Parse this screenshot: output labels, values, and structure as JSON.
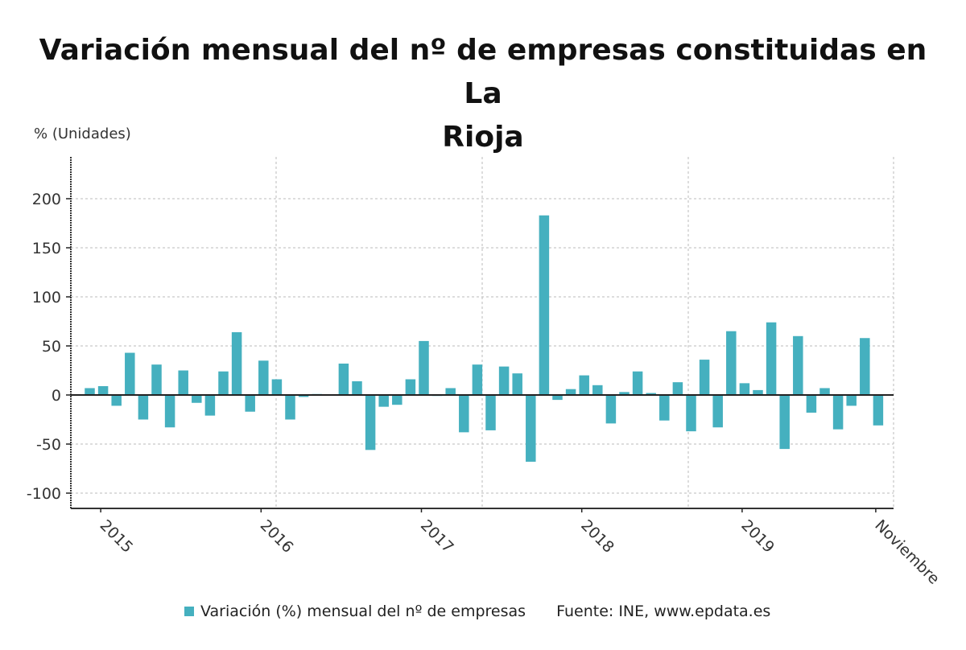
{
  "chart_data": {
    "type": "bar",
    "title": "Variación mensual del nº de empresas constituidas en La Rioja",
    "ylabel": "% (Unidades)",
    "xlabel": "",
    "ylim": [
      -115,
      240
    ],
    "yticks": [
      200,
      150,
      100,
      50,
      0,
      -50,
      -100
    ],
    "ytick_labels": [
      "200",
      "150",
      "100",
      "50",
      "0",
      "-50",
      "-100"
    ],
    "grid": true,
    "xtick_labels": [
      {
        "label": "2015",
        "index": 1
      },
      {
        "label": "2016",
        "index": 13
      },
      {
        "label": "2017",
        "index": 25
      },
      {
        "label": "2018",
        "index": 37
      },
      {
        "label": "2019",
        "index": 49
      },
      {
        "label": "Noviembre",
        "index": 59
      }
    ],
    "categories": [
      "2014-12",
      "2015-01",
      "2015-02",
      "2015-03",
      "2015-04",
      "2015-05",
      "2015-06",
      "2015-07",
      "2015-08",
      "2015-09",
      "2015-10",
      "2015-11",
      "2015-12",
      "2016-01",
      "2016-02",
      "2016-03",
      "2016-04",
      "2016-05",
      "2016-06",
      "2016-07",
      "2016-08",
      "2016-09",
      "2016-10",
      "2016-11",
      "2016-12",
      "2017-01",
      "2017-02",
      "2017-03",
      "2017-04",
      "2017-05",
      "2017-06",
      "2017-07",
      "2017-08",
      "2017-09",
      "2017-10",
      "2017-11",
      "2017-12",
      "2018-01",
      "2018-02",
      "2018-03",
      "2018-04",
      "2018-05",
      "2018-06",
      "2018-07",
      "2018-08",
      "2018-09",
      "2018-10",
      "2018-11",
      "2018-12",
      "2019-01",
      "2019-02",
      "2019-03",
      "2019-04",
      "2019-05",
      "2019-06",
      "2019-07",
      "2019-08",
      "2019-09",
      "2019-10",
      "2019-11"
    ],
    "series": [
      {
        "name": "Variación (%) mensual del nº de empresas",
        "color": "#45B0BF",
        "values": [
          7,
          9,
          -11,
          43,
          -25,
          31,
          -33,
          25,
          -8,
          -21,
          24,
          64,
          -17,
          35,
          16,
          -25,
          -2,
          1,
          0,
          32,
          14,
          -56,
          -12,
          -10,
          16,
          55,
          -1,
          7,
          -38,
          31,
          -36,
          29,
          22,
          -68,
          183,
          -5,
          6,
          20,
          10,
          -29,
          3,
          24,
          2,
          -26,
          13,
          -37,
          36,
          -33,
          65,
          12,
          5,
          74,
          -55,
          60,
          -18,
          7,
          -35,
          -11,
          58,
          -31
        ]
      }
    ],
    "legend": "bottom"
  },
  "source": "Fuente: INE, www.epdata.es",
  "colors": {
    "bar": "#45B0BF",
    "axis": "#222222",
    "grid": "#bbbbbb",
    "text": "#333333"
  }
}
